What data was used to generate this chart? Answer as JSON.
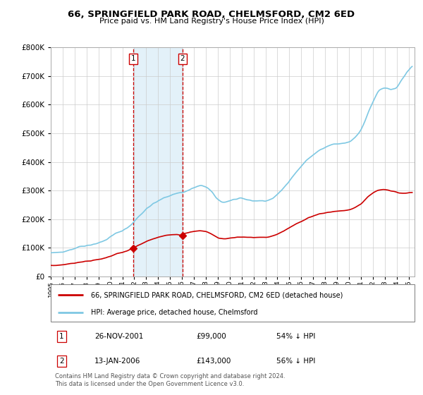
{
  "title": "66, SPRINGFIELD PARK ROAD, CHELMSFORD, CM2 6ED",
  "subtitle": "Price paid vs. HM Land Registry's House Price Index (HPI)",
  "legend_line1": "66, SPRINGFIELD PARK ROAD, CHELMSFORD, CM2 6ED (detached house)",
  "legend_line2": "HPI: Average price, detached house, Chelmsford",
  "footnote": "Contains HM Land Registry data © Crown copyright and database right 2024.\nThis data is licensed under the Open Government Licence v3.0.",
  "table_rows": [
    {
      "num": "1",
      "date": "26-NOV-2001",
      "price": "£99,000",
      "rel": "54% ↓ HPI"
    },
    {
      "num": "2",
      "date": "13-JAN-2006",
      "price": "£143,000",
      "rel": "56% ↓ HPI"
    }
  ],
  "sale1_year": 2001.9,
  "sale1_price": 99000,
  "sale2_year": 2006.04,
  "sale2_price": 143000,
  "vline1_date": 2001.9,
  "vline2_date": 2006.04,
  "hpi_color": "#7ec8e3",
  "sale_color": "#cc0000",
  "vline_color": "#cc0000",
  "shade_color": "#ddeef8",
  "ylim": [
    0,
    800000
  ],
  "xlim_start": 1995.0,
  "xlim_end": 2025.5,
  "xticks": [
    1995,
    1996,
    1997,
    1998,
    1999,
    2000,
    2001,
    2002,
    2003,
    2004,
    2005,
    2006,
    2007,
    2008,
    2009,
    2010,
    2011,
    2012,
    2013,
    2014,
    2015,
    2016,
    2017,
    2018,
    2019,
    2020,
    2021,
    2022,
    2023,
    2024,
    2025
  ],
  "yticks": [
    0,
    100000,
    200000,
    300000,
    400000,
    500000,
    600000,
    700000,
    800000
  ],
  "ytick_labels": [
    "£0",
    "£100K",
    "£200K",
    "£300K",
    "£400K",
    "£500K",
    "£600K",
    "£700K",
    "£800K"
  ]
}
